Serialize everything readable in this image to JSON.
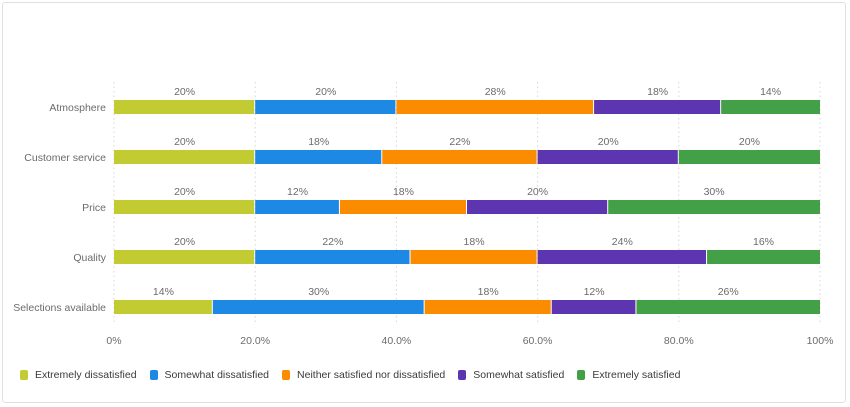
{
  "chart_data": {
    "type": "bar",
    "orientation": "horizontal",
    "stacked": true,
    "categories": [
      "Atmosphere",
      "Customer service",
      "Price",
      "Quality",
      "Selections available"
    ],
    "series": [
      {
        "name": "Extremely dissatisfied",
        "color": "#c3cb33",
        "values": [
          20,
          20,
          20,
          20,
          14
        ]
      },
      {
        "name": "Somewhat dissatisfied",
        "color": "#1e88e5",
        "values": [
          20,
          18,
          12,
          22,
          30
        ]
      },
      {
        "name": "Neither satisfied nor dissatisfied",
        "color": "#fb8c00",
        "values": [
          28,
          22,
          18,
          18,
          18
        ]
      },
      {
        "name": "Somewhat satisfied",
        "color": "#5e35b1",
        "values": [
          18,
          20,
          20,
          24,
          12
        ]
      },
      {
        "name": "Extremely satisfied",
        "color": "#43a047",
        "values": [
          14,
          20,
          30,
          16,
          26
        ]
      }
    ],
    "xlim": [
      0,
      100
    ],
    "xticks": [
      "0%",
      "20.0%",
      "40.0%",
      "60.0%",
      "80.0%",
      "100%"
    ],
    "grid": "vertical dotted",
    "legend": "bottom-left",
    "data_labels": true,
    "title": "",
    "xlabel": "",
    "ylabel": ""
  }
}
